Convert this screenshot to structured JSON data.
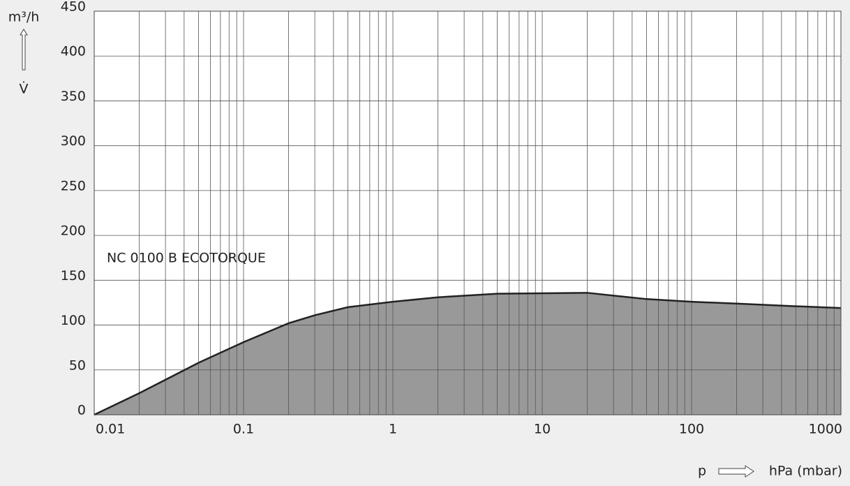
{
  "chart_data": {
    "type": "area",
    "title": "NC 0100 B ECOTORQUE",
    "x_label": "hPa (mbar)",
    "x_symbol": "p",
    "y_label": "m³/h",
    "y_symbol": "V̇",
    "x": [
      0.01,
      0.02,
      0.05,
      0.1,
      0.2,
      0.3,
      0.5,
      1,
      2,
      5,
      10,
      20,
      50,
      100,
      200,
      500,
      1000
    ],
    "values": [
      0,
      24,
      58,
      81,
      102,
      111,
      120,
      126,
      131,
      135,
      135.5,
      136,
      129,
      126,
      124,
      121,
      119
    ],
    "color": "#999999",
    "line_color": "#222222",
    "xlim": [
      0.01,
      1000
    ],
    "xticks": [
      0.01,
      0.1,
      1,
      10,
      100,
      1000
    ],
    "xscale": "log",
    "ylim": [
      0,
      450
    ],
    "yticks": [
      0,
      50,
      100,
      150,
      200,
      250,
      300,
      350,
      400,
      450
    ],
    "grid": true,
    "minor_grid": true
  }
}
